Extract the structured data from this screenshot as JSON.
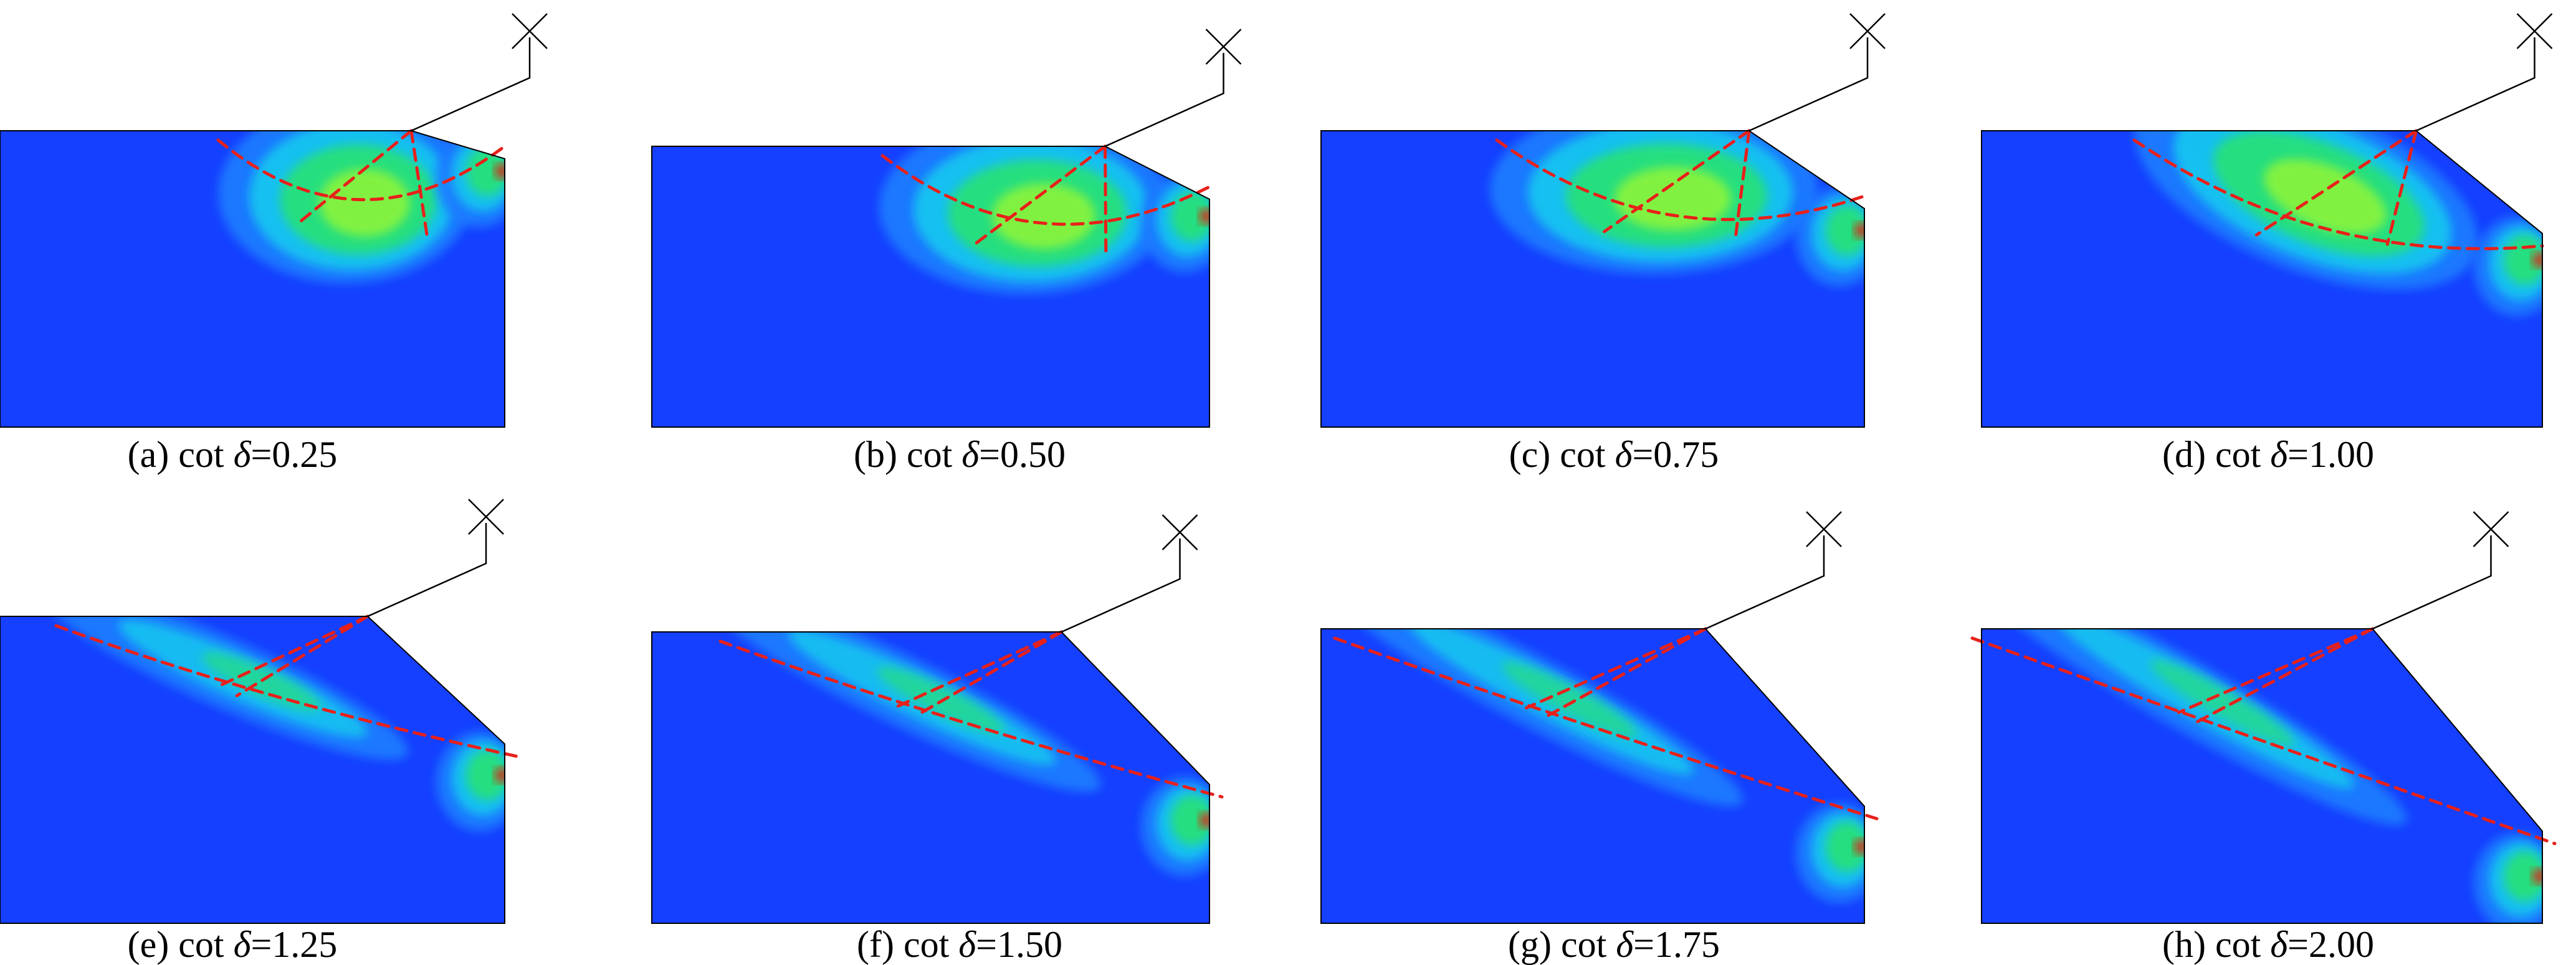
{
  "figure": {
    "colors": {
      "background_field": "#1540ff",
      "low_contour": "#1f7cff",
      "mid_contour": "#19c4f0",
      "high_contour": "#28e07a",
      "peak_contour": "#8cf43a",
      "hotspot": "#e02010",
      "failure_line": "#e8201a",
      "outline": "#000000"
    },
    "panels": [
      {
        "id": "a",
        "caption_prefix": "(a) cot ",
        "symbol": "δ",
        "caption_value": "=0.25",
        "cot_delta": 0.25
      },
      {
        "id": "b",
        "caption_prefix": "(b) cot ",
        "symbol": "δ",
        "caption_value": "=0.50",
        "cot_delta": 0.5
      },
      {
        "id": "c",
        "caption_prefix": "(c) cot ",
        "symbol": "δ",
        "caption_value": "=0.75",
        "cot_delta": 0.75
      },
      {
        "id": "d",
        "caption_prefix": "(d) cot ",
        "symbol": "δ",
        "caption_value": "=1.00",
        "cot_delta": 1.0
      },
      {
        "id": "e",
        "caption_prefix": "(e) cot ",
        "symbol": "δ",
        "caption_value": "=1.25",
        "cot_delta": 1.25
      },
      {
        "id": "f",
        "caption_prefix": "(f) cot ",
        "symbol": "δ",
        "caption_value": "=1.50",
        "cot_delta": 1.5
      },
      {
        "id": "g",
        "caption_prefix": "(g) cot ",
        "symbol": "δ",
        "caption_value": "=1.75",
        "cot_delta": 1.75
      },
      {
        "id": "h",
        "caption_prefix": "(h) cot ",
        "symbol": "δ",
        "caption_value": "=2.00",
        "cot_delta": 2.0
      }
    ]
  }
}
